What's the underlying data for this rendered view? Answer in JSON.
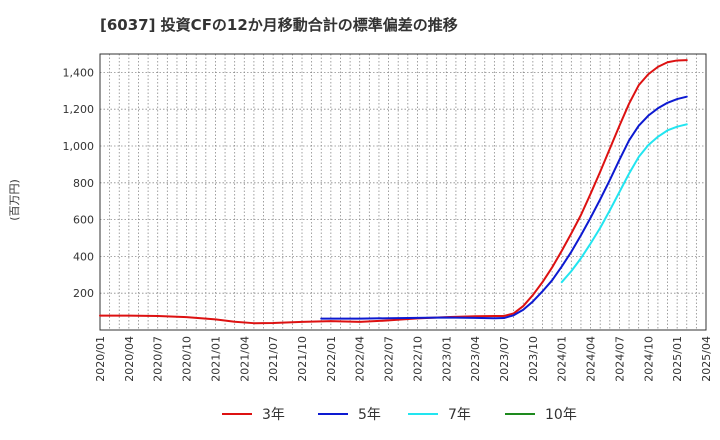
{
  "chart_data": {
    "type": "line",
    "title": "[6037]  投資CFの12か月移動合計の標準偏差の推移",
    "ylabel": "(百万円)",
    "xlabel": "",
    "ylim": [
      0,
      1500
    ],
    "yticks": [
      200,
      400,
      600,
      800,
      1000,
      1200,
      1400
    ],
    "ytick_labels": [
      "200",
      "400",
      "600",
      "800",
      "1,000",
      "1,200",
      "1,400"
    ],
    "x_start": "2020/01",
    "x_end": "2025/04",
    "xtick_labels": [
      "2020/01",
      "2020/04",
      "2020/07",
      "2020/10",
      "2021/01",
      "2021/04",
      "2021/07",
      "2021/10",
      "2022/01",
      "2022/04",
      "2022/07",
      "2022/10",
      "2023/01",
      "2023/04",
      "2023/07",
      "2023/10",
      "2024/01",
      "2024/04",
      "2024/07",
      "2024/10",
      "2025/01",
      "2025/04"
    ],
    "grid": true,
    "legend_position": "bottom",
    "series": [
      {
        "name": "3年",
        "color": "#dd1111",
        "points": [
          [
            "2020/01",
            78
          ],
          [
            "2020/04",
            78
          ],
          [
            "2020/07",
            76
          ],
          [
            "2020/10",
            70
          ],
          [
            "2021/01",
            58
          ],
          [
            "2021/03",
            45
          ],
          [
            "2021/05",
            37
          ],
          [
            "2021/07",
            38
          ],
          [
            "2021/10",
            44
          ],
          [
            "2022/01",
            48
          ],
          [
            "2022/04",
            44
          ],
          [
            "2022/07",
            52
          ],
          [
            "2022/10",
            63
          ],
          [
            "2023/01",
            70
          ],
          [
            "2023/04",
            75
          ],
          [
            "2023/06",
            76
          ],
          [
            "2023/07",
            76
          ],
          [
            "2023/08",
            90
          ],
          [
            "2023/09",
            130
          ],
          [
            "2023/10",
            190
          ],
          [
            "2023/11",
            260
          ],
          [
            "2023/12",
            340
          ],
          [
            "2024/01",
            430
          ],
          [
            "2024/02",
            525
          ],
          [
            "2024/03",
            625
          ],
          [
            "2024/04",
            740
          ],
          [
            "2024/05",
            860
          ],
          [
            "2024/06",
            985
          ],
          [
            "2024/07",
            1110
          ],
          [
            "2024/08",
            1230
          ],
          [
            "2024/09",
            1330
          ],
          [
            "2024/10",
            1390
          ],
          [
            "2024/11",
            1430
          ],
          [
            "2024/12",
            1455
          ],
          [
            "2025/01",
            1465
          ],
          [
            "2025/02",
            1467
          ]
        ]
      },
      {
        "name": "5年",
        "color": "#0d1ad1",
        "points": [
          [
            "2021/12",
            62
          ],
          [
            "2022/01",
            62
          ],
          [
            "2022/04",
            62
          ],
          [
            "2022/07",
            64
          ],
          [
            "2022/10",
            66
          ],
          [
            "2023/01",
            68
          ],
          [
            "2023/04",
            66
          ],
          [
            "2023/06",
            64
          ],
          [
            "2023/07",
            65
          ],
          [
            "2023/08",
            80
          ],
          [
            "2023/09",
            110
          ],
          [
            "2023/10",
            155
          ],
          [
            "2023/11",
            210
          ],
          [
            "2023/12",
            270
          ],
          [
            "2024/01",
            345
          ],
          [
            "2024/02",
            425
          ],
          [
            "2024/03",
            515
          ],
          [
            "2024/04",
            610
          ],
          [
            "2024/05",
            710
          ],
          [
            "2024/06",
            815
          ],
          [
            "2024/07",
            925
          ],
          [
            "2024/08",
            1030
          ],
          [
            "2024/09",
            1110
          ],
          [
            "2024/10",
            1165
          ],
          [
            "2024/11",
            1205
          ],
          [
            "2024/12",
            1235
          ],
          [
            "2025/01",
            1255
          ],
          [
            "2025/02",
            1268
          ]
        ]
      },
      {
        "name": "7年",
        "color": "#22e5f0",
        "points": [
          [
            "2024/01",
            260
          ],
          [
            "2024/02",
            320
          ],
          [
            "2024/03",
            390
          ],
          [
            "2024/04",
            470
          ],
          [
            "2024/05",
            555
          ],
          [
            "2024/06",
            650
          ],
          [
            "2024/07",
            750
          ],
          [
            "2024/08",
            850
          ],
          [
            "2024/09",
            940
          ],
          [
            "2024/10",
            1005
          ],
          [
            "2024/11",
            1050
          ],
          [
            "2024/12",
            1085
          ],
          [
            "2025/01",
            1105
          ],
          [
            "2025/02",
            1118
          ]
        ]
      },
      {
        "name": "10年",
        "color": "#1e8a1e",
        "points": []
      }
    ]
  }
}
